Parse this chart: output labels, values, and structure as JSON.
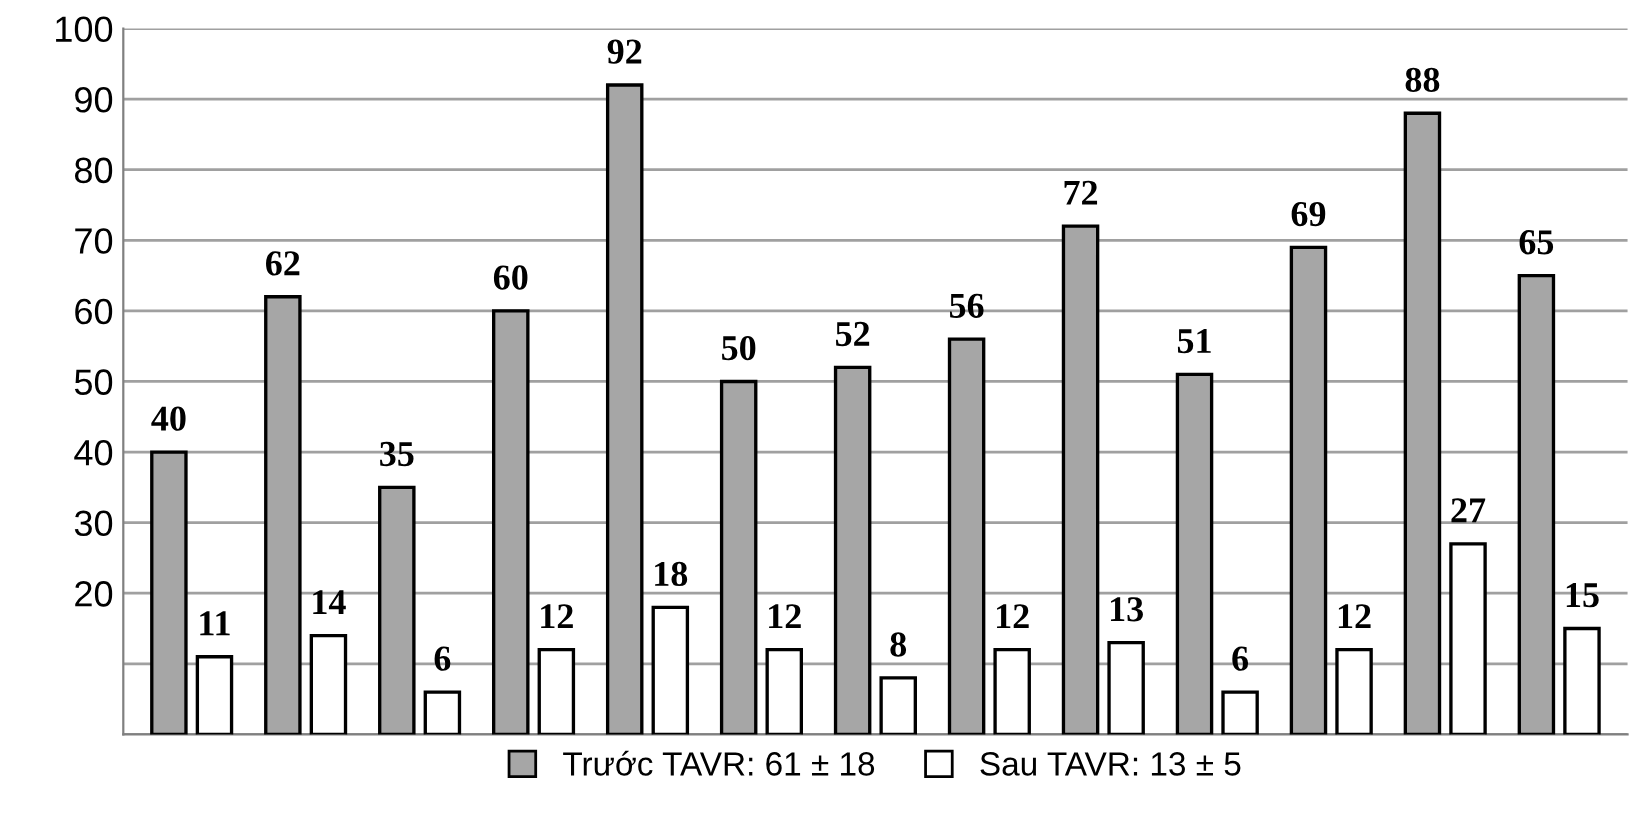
{
  "chart_data": {
    "type": "bar",
    "categories": [
      null,
      null,
      null,
      null,
      null,
      null,
      null,
      null,
      null,
      null,
      null,
      null,
      null
    ],
    "series": [
      {
        "name": "Trước TAVR: 61 ± 18",
        "color": "#a6a6a6",
        "values": [
          40,
          62,
          35,
          60,
          92,
          50,
          52,
          56,
          72,
          51,
          69,
          88,
          65
        ]
      },
      {
        "name": "Sau TAVR: 13 ± 5",
        "color": "#ffffff",
        "values": [
          11,
          14,
          6,
          12,
          18,
          12,
          8,
          12,
          13,
          6,
          12,
          27,
          15
        ]
      }
    ],
    "ylim": [
      0,
      100
    ],
    "yticks": [
      {
        "value": 0,
        "label": null
      },
      {
        "value": 10,
        "label": null
      },
      20,
      30,
      40,
      50,
      60,
      70,
      80,
      90,
      100
    ],
    "grid": "y",
    "legend": "bottom",
    "data_labels": true
  }
}
